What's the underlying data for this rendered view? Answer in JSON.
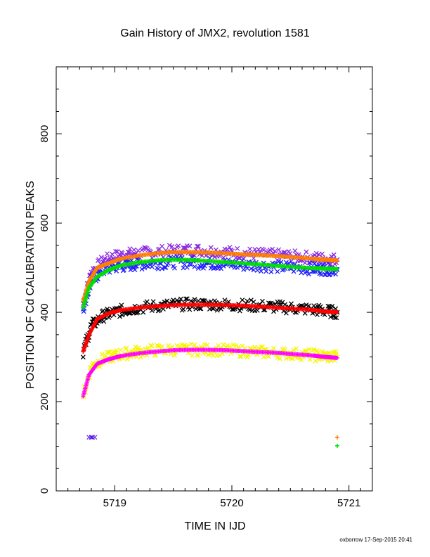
{
  "chart_data": {
    "type": "scatter",
    "title": "Gain History of JMX2, revolution 1581",
    "xlabel": "TIME IN IJD",
    "ylabel": "POSITION OF Cd CALIBRATION PEAKS",
    "xlim": [
      5718.5,
      5721.2
    ],
    "ylim": [
      0,
      950
    ],
    "xticks": [
      5719,
      5720,
      5721
    ],
    "yticks": [
      0,
      200,
      400,
      600,
      800
    ],
    "grid": false,
    "legend": "none",
    "footer": "oxborrow 17-Sep-2015 20:41",
    "series": [
      {
        "color": "#8a2be2",
        "marker": "x",
        "x": [
          5718.73,
          5718.8,
          5718.9,
          5719.0,
          5719.1,
          5719.2,
          5719.35,
          5719.5,
          5719.65,
          5719.8,
          5719.95,
          5720.1,
          5720.25,
          5720.4,
          5720.55,
          5720.7,
          5720.8,
          5720.9
        ],
        "y": [
          420,
          490,
          515,
          525,
          530,
          532,
          535,
          538,
          540,
          538,
          535,
          532,
          530,
          528,
          525,
          522,
          520,
          518
        ]
      },
      {
        "color": "#2020ff",
        "marker": "x",
        "x": [
          5718.73,
          5718.8,
          5718.9,
          5719.0,
          5719.1,
          5719.2,
          5719.35,
          5719.5,
          5719.65,
          5719.8,
          5719.95,
          5720.1,
          5720.25,
          5720.4,
          5720.55,
          5720.7,
          5720.8,
          5720.9
        ],
        "y": [
          410,
          470,
          495,
          502,
          505,
          508,
          510,
          512,
          512,
          510,
          508,
          506,
          505,
          502,
          500,
          498,
          497,
          496
        ]
      },
      {
        "color": "#ff7f00",
        "marker": "+",
        "x": [
          5718.73,
          5718.78,
          5718.85,
          5718.95,
          5719.05,
          5719.2,
          5719.35,
          5719.5,
          5719.65,
          5719.8,
          5719.95,
          5720.1,
          5720.25,
          5720.4,
          5720.55,
          5720.7,
          5720.8,
          5720.9
        ],
        "y": [
          425,
          470,
          500,
          510,
          520,
          527,
          532,
          535,
          535,
          534,
          532,
          530,
          528,
          526,
          523,
          520,
          518,
          516
        ]
      },
      {
        "color": "#00e000",
        "marker": "+",
        "x": [
          5718.73,
          5718.78,
          5718.85,
          5718.95,
          5719.05,
          5719.2,
          5719.35,
          5719.5,
          5719.65,
          5719.8,
          5719.95,
          5720.1,
          5720.25,
          5720.4,
          5720.55,
          5720.7,
          5720.8,
          5720.9
        ],
        "y": [
          410,
          455,
          480,
          495,
          505,
          512,
          516,
          518,
          517,
          515,
          512,
          510,
          507,
          504,
          501,
          499,
          498,
          497
        ]
      },
      {
        "color": "#000000",
        "marker": "x",
        "x": [
          5718.73,
          5718.8,
          5718.9,
          5719.0,
          5719.1,
          5719.2,
          5719.35,
          5719.5,
          5719.65,
          5719.8,
          5719.95,
          5720.1,
          5720.25,
          5720.4,
          5720.55,
          5720.7,
          5720.8,
          5720.9
        ],
        "y": [
          312,
          370,
          392,
          400,
          406,
          410,
          414,
          417,
          418,
          418,
          417,
          416,
          414,
          412,
          409,
          406,
          403,
          400
        ]
      },
      {
        "color": "#ff0000",
        "marker": "+",
        "x": [
          5718.73,
          5718.78,
          5718.85,
          5718.95,
          5719.05,
          5719.2,
          5719.35,
          5719.5,
          5719.65,
          5719.8,
          5719.95,
          5720.1,
          5720.25,
          5720.4,
          5720.55,
          5720.7,
          5720.8,
          5720.9
        ],
        "y": [
          312,
          350,
          385,
          398,
          405,
          410,
          414,
          416,
          417,
          417,
          416,
          415,
          413,
          410,
          408,
          405,
          402,
          400
        ]
      },
      {
        "color": "#f5f500",
        "marker": "x",
        "x": [
          5718.73,
          5718.8,
          5718.9,
          5719.0,
          5719.1,
          5719.2,
          5719.35,
          5719.5,
          5719.65,
          5719.8,
          5719.95,
          5720.1,
          5720.25,
          5720.4,
          5720.55,
          5720.7,
          5720.8,
          5720.9
        ],
        "y": [
          212,
          280,
          295,
          303,
          308,
          312,
          315,
          316,
          316,
          316,
          315,
          313,
          311,
          309,
          307,
          304,
          302,
          300
        ]
      },
      {
        "color": "#ff00ff",
        "marker": "+",
        "x": [
          5718.73,
          5718.78,
          5718.85,
          5718.95,
          5719.05,
          5719.2,
          5719.35,
          5719.5,
          5719.65,
          5719.8,
          5719.95,
          5720.1,
          5720.25,
          5720.4,
          5720.55,
          5720.7,
          5720.8,
          5720.9
        ],
        "y": [
          212,
          260,
          285,
          295,
          302,
          308,
          312,
          315,
          316,
          316,
          315,
          313,
          311,
          309,
          306,
          303,
          300,
          298
        ]
      }
    ],
    "outliers": [
      {
        "color": "#8a2be2",
        "marker": "x",
        "x": 5718.78,
        "y": 120
      },
      {
        "color": "#8a2be2",
        "marker": "x",
        "x": 5718.81,
        "y": 120
      },
      {
        "color": "#8a2be2",
        "marker": "x",
        "x": 5718.83,
        "y": 120
      },
      {
        "color": "#2020ff",
        "marker": "x",
        "x": 5718.8,
        "y": 120
      },
      {
        "color": "#ff7f00",
        "marker": "+",
        "x": 5720.9,
        "y": 120
      },
      {
        "color": "#00e000",
        "marker": "+",
        "x": 5720.9,
        "y": 101
      }
    ]
  }
}
